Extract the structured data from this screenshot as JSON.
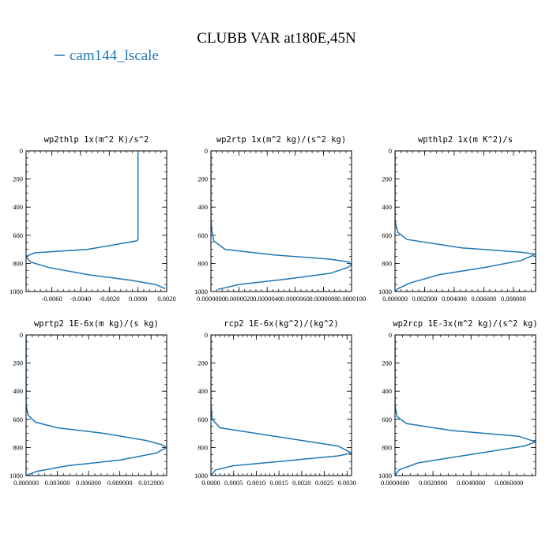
{
  "figure": {
    "title": "CLUBB VAR at180E,45N",
    "legend": {
      "label": "cam144_lscale",
      "color": "#1f77b4"
    }
  },
  "chart_data": [
    {
      "type": "line",
      "title": "wp2thlp   1x(m^2 K)/s^2",
      "xlim": [
        -0.0078,
        0.002
      ],
      "xticks": [
        -0.006,
        -0.004,
        -0.002,
        0.0,
        0.002
      ],
      "xtick_labels": [
        "-0.0060",
        "-0.0040",
        "-0.0020",
        "0.0000",
        "0.0020"
      ],
      "ylim": [
        1000,
        0
      ],
      "yticks": [
        0,
        200,
        400,
        600,
        800,
        1000
      ],
      "ytick_labels": [
        "0",
        "200",
        "400",
        "600",
        "800",
        "1000"
      ],
      "series": [
        {
          "color": "#1f77b4",
          "x": [
            0.0,
            0.0,
            0.0,
            0.0,
            -0.0001,
            -0.0015,
            -0.0035,
            -0.0072,
            -0.0078,
            -0.0075,
            -0.0062,
            -0.0035,
            -0.0005,
            0.0012,
            0.0019
          ],
          "y": [
            0,
            300,
            600,
            630,
            640,
            665,
            700,
            725,
            750,
            790,
            830,
            880,
            920,
            950,
            980
          ]
        }
      ]
    },
    {
      "type": "line",
      "title": "wp2rtp  1x(m^2 kg)/(s^2 kg)",
      "xlim": [
        0.0,
        1e-05
      ],
      "xticks": [
        0.0,
        2e-06,
        4e-06,
        6e-06,
        8e-06,
        1e-05
      ],
      "xtick_labels": [
        "0.0000000",
        "0.0000020",
        "0.0000040",
        "0.0000060",
        "0.0000080",
        "0.0000100"
      ],
      "ylim": [
        1000,
        0
      ],
      "yticks": [
        0,
        200,
        400,
        600,
        800,
        1000
      ],
      "ytick_labels": [
        "0",
        "200",
        "400",
        "600",
        "800",
        "1000"
      ],
      "series": [
        {
          "color": "#1f77b4",
          "x": [
            0.0,
            0.0,
            5e-08,
            2e-07,
            1e-06,
            4.5e-06,
            8.5e-06,
            9.8e-06,
            1e-05,
            9.7e-06,
            8.5e-06,
            5.5e-06,
            2e-06,
            5e-07
          ],
          "y": [
            0,
            500,
            560,
            640,
            700,
            740,
            770,
            790,
            810,
            830,
            870,
            910,
            950,
            985
          ]
        }
      ]
    },
    {
      "type": "line",
      "title": "wpthlp2  1x(m K^2)/s",
      "xlim": [
        0.0,
        0.0095
      ],
      "xticks": [
        0.0,
        0.002,
        0.004,
        0.006,
        0.008
      ],
      "xtick_labels": [
        "0.000000",
        "0.002000",
        "0.004000",
        "0.006000",
        "0.008000"
      ],
      "ylim": [
        1000,
        0
      ],
      "yticks": [
        0,
        200,
        400,
        600,
        800,
        1000
      ],
      "ytick_labels": [
        "0",
        "200",
        "400",
        "600",
        "800",
        "1000"
      ],
      "series": [
        {
          "color": "#1f77b4",
          "x": [
            0.0,
            0.0,
            0.0002,
            0.0008,
            0.0045,
            0.0085,
            0.0095,
            0.0085,
            0.006,
            0.003,
            0.001,
            0.0002,
            0.0
          ],
          "y": [
            0,
            500,
            580,
            630,
            690,
            720,
            735,
            780,
            830,
            880,
            940,
            980,
            1000
          ]
        }
      ]
    },
    {
      "type": "line",
      "title": "wprtp2  1E-6x(m kg)/(s kg)",
      "xlim": [
        0.0,
        0.0135
      ],
      "xticks": [
        0.0,
        0.003,
        0.006,
        0.009,
        0.012
      ],
      "xtick_labels": [
        "0.000000",
        "0.003000",
        "0.006000",
        "0.009000",
        "0.012000"
      ],
      "ylim": [
        1000,
        0
      ],
      "yticks": [
        0,
        200,
        400,
        600,
        800,
        1000
      ],
      "ytick_labels": [
        "0",
        "200",
        "400",
        "600",
        "800",
        "1000"
      ],
      "series": [
        {
          "color": "#1f77b4",
          "x": [
            0.0,
            0.0,
            0.0002,
            0.0009,
            0.003,
            0.0075,
            0.0115,
            0.013,
            0.0135,
            0.0125,
            0.009,
            0.004,
            0.001,
            0.0
          ],
          "y": [
            0,
            500,
            570,
            620,
            660,
            700,
            750,
            780,
            800,
            840,
            890,
            930,
            970,
            1000
          ]
        }
      ]
    },
    {
      "type": "line",
      "title": "rcp2  1E-6x(kg^2)/(kg^2)",
      "xlim": [
        0.0,
        0.0031
      ],
      "xticks": [
        0.0,
        0.0005,
        0.001,
        0.0015,
        0.002,
        0.0025,
        0.003
      ],
      "xtick_labels": [
        "0.0000",
        "0.0005",
        "0.0010",
        "0.0015",
        "0.0020",
        "0.0025",
        "0.0030"
      ],
      "ylim": [
        1000,
        0
      ],
      "yticks": [
        0,
        200,
        400,
        600,
        800,
        1000
      ],
      "ytick_labels": [
        "0",
        "200",
        "400",
        "600",
        "800",
        "1000"
      ],
      "series": [
        {
          "color": "#1f77b4",
          "x": [
            0.0,
            0.0,
            3e-05,
            0.0002,
            0.001,
            0.002,
            0.0028,
            0.0031,
            0.0028,
            0.0015,
            0.0005,
            0.0001,
            0.0
          ],
          "y": [
            0,
            500,
            600,
            660,
            700,
            750,
            790,
            840,
            860,
            900,
            930,
            960,
            1000
          ]
        }
      ]
    },
    {
      "type": "line",
      "title": "wp2rcp  1E-3x(m^2 kg)/(s^2 kg)",
      "xlim": [
        0.0,
        0.0074
      ],
      "xticks": [
        0.0,
        0.002,
        0.004,
        0.006
      ],
      "xtick_labels": [
        "0.0000000",
        "0.0020000",
        "0.0040000",
        "0.0060000"
      ],
      "ylim": [
        1000,
        0
      ],
      "yticks": [
        0,
        200,
        400,
        600,
        800,
        1000
      ],
      "ytick_labels": [
        "0",
        "200",
        "400",
        "600",
        "800",
        "1000"
      ],
      "series": [
        {
          "color": "#1f77b4",
          "x": [
            0.0,
            0.0,
            0.0001,
            0.0006,
            0.003,
            0.0065,
            0.0074,
            0.0068,
            0.004,
            0.0012,
            0.0002,
            0.0
          ],
          "y": [
            0,
            500,
            580,
            630,
            680,
            720,
            760,
            790,
            850,
            910,
            960,
            1000
          ]
        }
      ]
    }
  ]
}
